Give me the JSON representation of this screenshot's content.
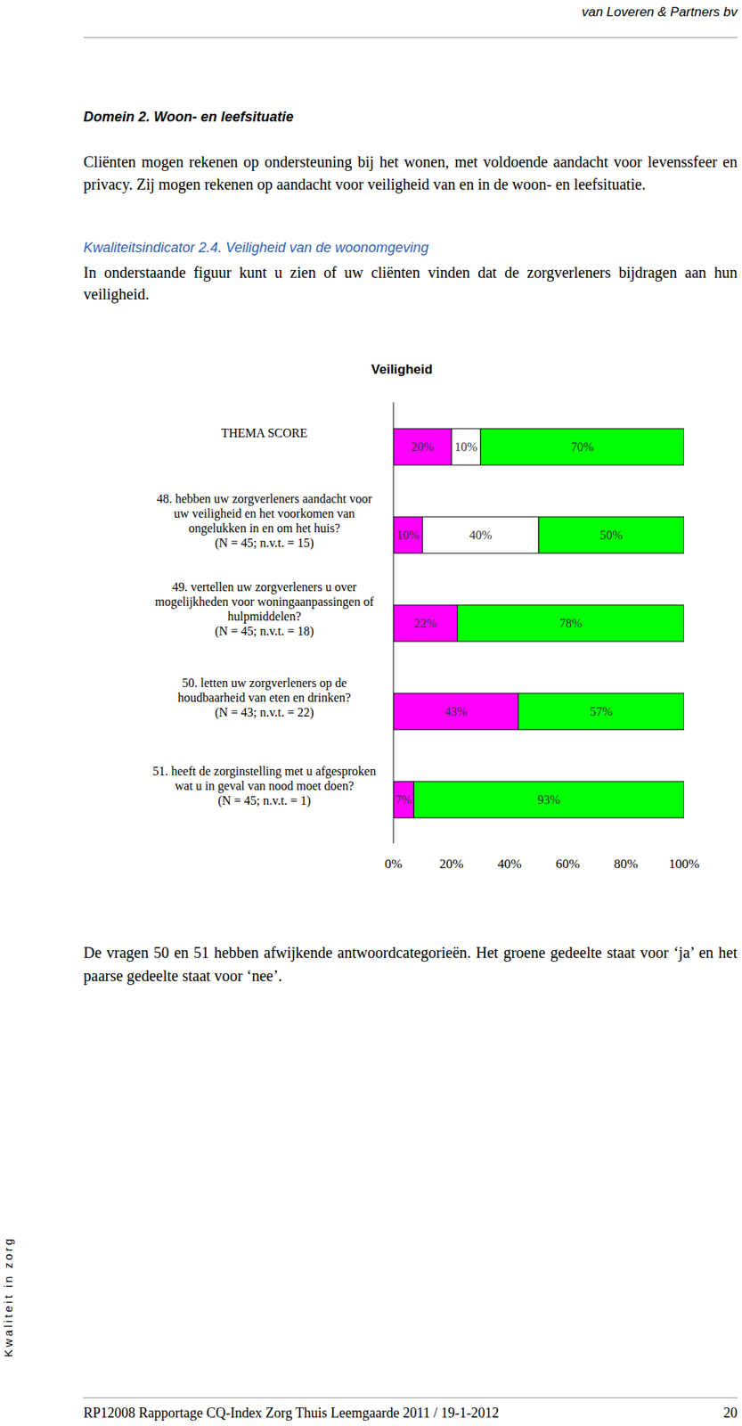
{
  "header": {
    "company": "van Loveren & Partners bv"
  },
  "section": "Domein 2. Woon- en leefsituatie",
  "intro": "Cliënten mogen rekenen op ondersteuning bij het wonen, met voldoende aandacht voor levenssfeer en privacy. Zij mogen rekenen op aandacht voor veiligheid van en in de woon- en leefsituatie.",
  "indicator": "Kwaliteitsindicator 2.4. Veiligheid van de woonomgeving",
  "indicator_text": "In onderstaande figuur kunt u zien of uw cliënten vinden dat de zorgverleners bijdragen aan hun veiligheid.",
  "chart_data": {
    "type": "bar",
    "title": "Veiligheid",
    "orientation": "horizontal",
    "stacked": true,
    "data_labels": true,
    "categories": [
      "THEMA SCORE",
      "48. hebben uw zorgverleners aandacht voor\nuw veiligheid en het voorkomen van\nongelukken in en om het huis?\n(N = 45; n.v.t. = 15)",
      "49. vertellen uw zorgverleners u over\nmogelijkheden voor woningaanpassingen of\nhulpmiddelen?\n(N = 45; n.v.t. = 18)",
      "50. letten uw zorgverleners op de\nhoudbaarheid van eten en drinken?\n(N = 43; n.v.t. = 22)",
      "51. heeft de zorginstelling met u afgesproken\nwat u in geval van nood moet doen?\n(N = 45; n.v.t. = 1)"
    ],
    "series": [
      {
        "color": "#ff00ff",
        "values": [
          20,
          10,
          22,
          43,
          7
        ],
        "value_labels": [
          "20%",
          "10%",
          "22%",
          "43%",
          "7%"
        ]
      },
      {
        "color": "#ffffff",
        "values": [
          10,
          40,
          null,
          null,
          null
        ],
        "value_labels": [
          "10%",
          "40%",
          null,
          null,
          null
        ]
      },
      {
        "color": "#00ff00",
        "values": [
          70,
          50,
          78,
          57,
          93
        ],
        "value_labels": [
          "70%",
          "50%",
          "78%",
          "57%",
          "93%"
        ]
      }
    ],
    "xlim": [
      0,
      100
    ],
    "xticks": [
      {
        "value": 0,
        "label": "0%"
      },
      {
        "value": 20,
        "label": "20%"
      },
      {
        "value": 40,
        "label": "40%"
      },
      {
        "value": 60,
        "label": "60%"
      },
      {
        "value": 80,
        "label": "80%"
      },
      {
        "value": 100,
        "label": "100%"
      }
    ]
  },
  "note": "De vragen 50 en 51 hebben afwijkende antwoordcategorieën. Het groene gedeelte staat voor ‘ja’ en het paarse gedeelte staat voor ‘nee’.",
  "side_text": "Kwaliteit in zorg",
  "footer": {
    "text": "RP12008 Rapportage CQ-Index Zorg Thuis Leemgaarde 2011 / 19-1-2012",
    "page": 20
  }
}
